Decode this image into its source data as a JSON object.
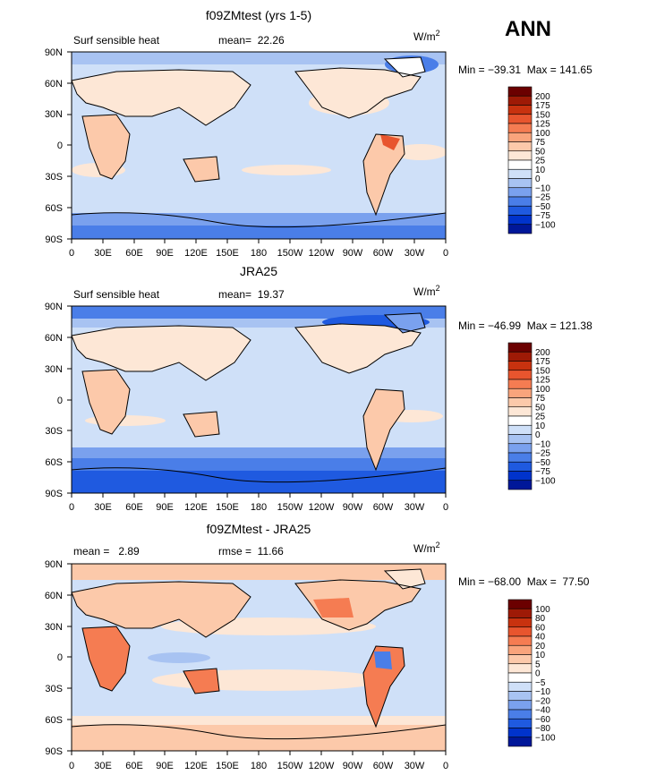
{
  "season": "ANN",
  "lat_ticks": [
    "90N",
    "60N",
    "30N",
    "0",
    "30S",
    "60S",
    "90S"
  ],
  "lon_ticks": [
    "0",
    "30E",
    "60E",
    "90E",
    "120E",
    "150E",
    "180",
    "150W",
    "120W",
    "90W",
    "60W",
    "30W",
    "0"
  ],
  "colors": {
    "scale_a": [
      "#000066",
      "#001799",
      "#0033cc",
      "#1f5ae0",
      "#4a7ee8",
      "#7aa1ee",
      "#a8c3f2",
      "#cfe0f8",
      "#ffffff",
      "#fde7d6",
      "#fcc9aa",
      "#f9a47c",
      "#f57c52",
      "#e8552e",
      "#c8320f",
      "#9e1a06",
      "#6b0000"
    ],
    "scale_b": [
      "#000066",
      "#001799",
      "#0033cc",
      "#1f5ae0",
      "#4a7ee8",
      "#7aa1ee",
      "#a8c3f2",
      "#cfe0f8",
      "#ffffff",
      "#fde7d6",
      "#fcc9aa",
      "#f9a47c",
      "#f57c52",
      "#e8552e",
      "#c8320f",
      "#9e1a06",
      "#6b0000"
    ]
  },
  "chart_data": [
    {
      "type": "heatmap",
      "title": "f09ZMtest (yrs 1-5)",
      "left_label": "Surf sensible heat",
      "mid_label": "mean=  22.26",
      "units": "W/m",
      "units_exp": "2",
      "min_max": "Min = −39.31  Max = 141.65",
      "colorbar_labels": [
        "200",
        "175",
        "150",
        "125",
        "100",
        "75",
        "50",
        "25",
        "10",
        "0",
        "−10",
        "−25",
        "−50",
        "−75",
        "−100"
      ],
      "levels": [
        -100,
        -75,
        -50,
        -25,
        -10,
        0,
        10,
        25,
        50,
        75,
        100,
        125,
        150,
        175,
        200
      ]
    },
    {
      "type": "heatmap",
      "title": "JRA25",
      "left_label": "Surf sensible heat",
      "mid_label": "mean=  19.37",
      "units": "W/m",
      "units_exp": "2",
      "min_max": "Min = −46.99  Max = 121.38",
      "colorbar_labels": [
        "200",
        "175",
        "150",
        "125",
        "100",
        "75",
        "50",
        "25",
        "10",
        "0",
        "−10",
        "−25",
        "−50",
        "−75",
        "−100"
      ],
      "levels": [
        -100,
        -75,
        -50,
        -25,
        -10,
        0,
        10,
        25,
        50,
        75,
        100,
        125,
        150,
        175,
        200
      ]
    },
    {
      "type": "heatmap",
      "title": "f09ZMtest - JRA25",
      "left_label": "mean =   2.89",
      "mid_label": "rmse =  11.66",
      "units": "W/m",
      "units_exp": "2",
      "min_max": "Min = −68.00  Max =  77.50",
      "colorbar_labels": [
        "100",
        "80",
        "60",
        "40",
        "20",
        "10",
        "5",
        "0",
        "−5",
        "−10",
        "−20",
        "−40",
        "−60",
        "−80",
        "−100"
      ],
      "levels": [
        -100,
        -80,
        -60,
        -40,
        -20,
        -10,
        -5,
        0,
        5,
        10,
        20,
        40,
        60,
        80,
        100
      ]
    }
  ]
}
